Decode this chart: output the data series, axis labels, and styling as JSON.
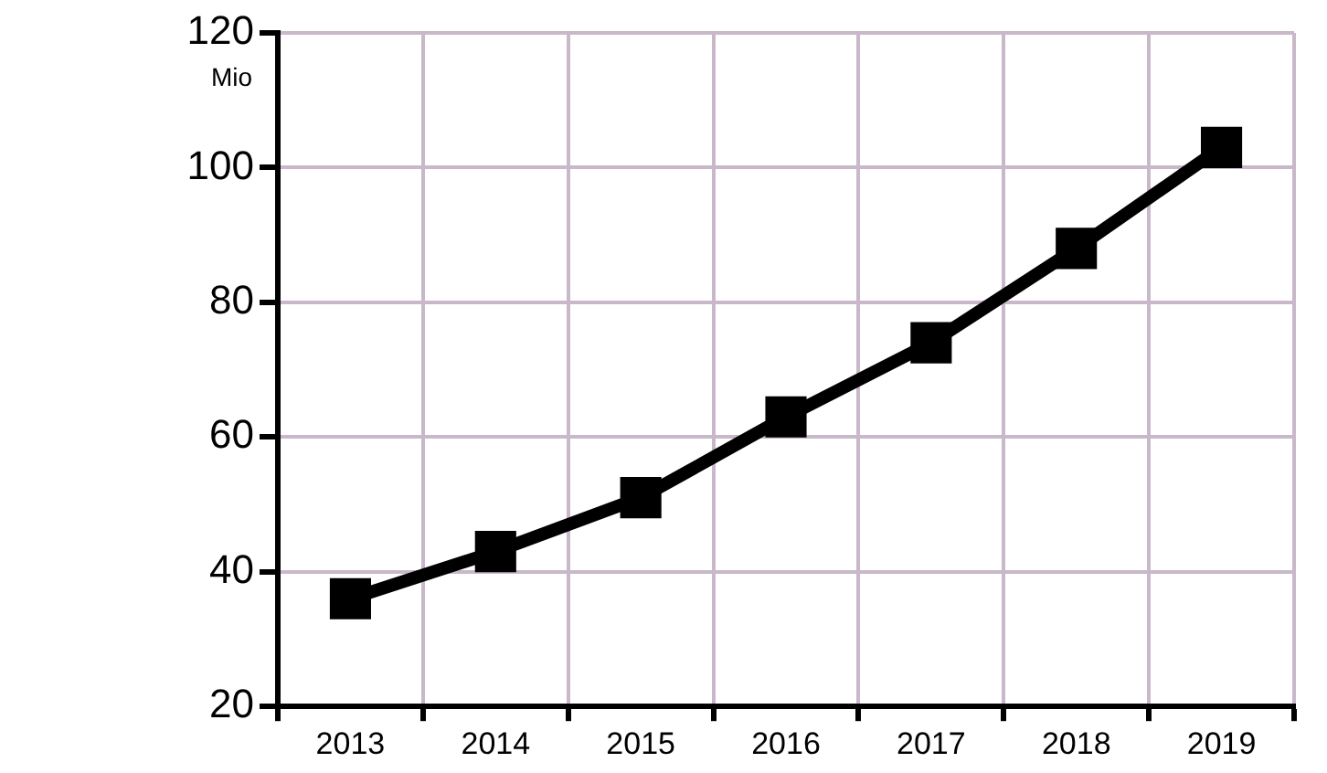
{
  "chart_data": {
    "type": "line",
    "ylabel": "Mio",
    "categories": [
      "2013",
      "2014",
      "2015",
      "2016",
      "2017",
      "2018",
      "2019"
    ],
    "series": [
      {
        "color": "#000000",
        "values": [
          36,
          43,
          51,
          63,
          74,
          88,
          103
        ]
      }
    ],
    "ylim": [
      20,
      120
    ],
    "yticks": [
      20,
      40,
      60,
      80,
      100,
      120
    ],
    "grid": true,
    "legend": false,
    "marker": "square",
    "line_style": "solid"
  }
}
